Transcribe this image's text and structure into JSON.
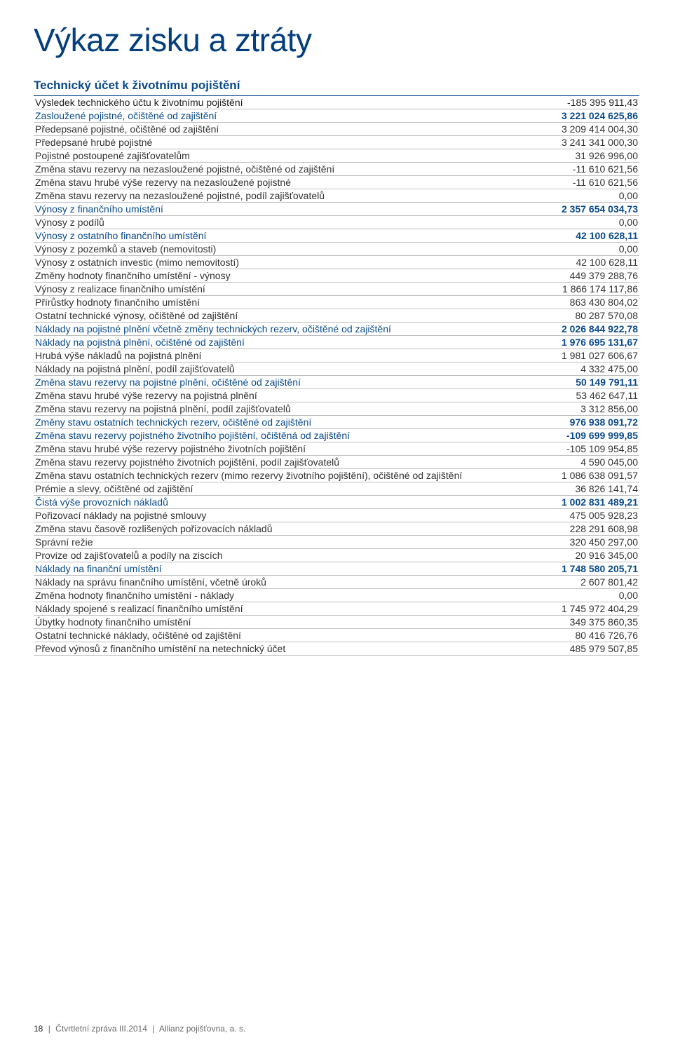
{
  "title": "Výkaz zisku a ztráty",
  "subtitle": "Technický účet k životnímu pojištění",
  "rows": [
    {
      "style": "h",
      "label": "Výsledek technického účtu k životnímu pojištění",
      "value": "-185 395 911,43"
    },
    {
      "style": "blue",
      "label": "Zasloužené pojistné, očištěné od zajištění",
      "value": "3 221 024 625,86"
    },
    {
      "style": "n",
      "label": "Předepsané pojistné, očištěné od zajištění",
      "value": "3 209 414 004,30"
    },
    {
      "style": "n",
      "label": "Předepsané hrubé pojistné",
      "value": "3 241 341 000,30"
    },
    {
      "style": "n",
      "label": "Pojistné postoupené zajišťovatelům",
      "value": "31 926 996,00"
    },
    {
      "style": "n",
      "label": "Změna stavu rezervy na nezasloužené pojistné, očištěné od zajištění",
      "value": "-11 610 621,56"
    },
    {
      "style": "n",
      "label": "Změna stavu hrubé výše rezervy na nezasloužené pojistné",
      "value": "-11 610 621,56"
    },
    {
      "style": "n",
      "label": "Změna stavu rezervy na nezasloužené pojistné, podíl zajišťovatelů",
      "value": "0,00"
    },
    {
      "style": "blue",
      "label": "Výnosy z finančního umístění",
      "value": "2 357 654 034,73"
    },
    {
      "style": "n",
      "label": "Výnosy z podílů",
      "value": "0,00"
    },
    {
      "style": "blue",
      "label": "Výnosy z ostatního finančního umístění",
      "value": "42 100 628,11"
    },
    {
      "style": "n",
      "label": "Výnosy z pozemků a staveb (nemovitosti)",
      "value": "0,00"
    },
    {
      "style": "n",
      "label": "Výnosy z ostatních investic (mimo nemovitostí)",
      "value": "42 100 628,11"
    },
    {
      "style": "n",
      "label": "Změny hodnoty finančního umístění - výnosy",
      "value": "449 379 288,76"
    },
    {
      "style": "n",
      "label": "Výnosy z realizace finančního umístění",
      "value": "1 866 174 117,86"
    },
    {
      "style": "n",
      "label": "Přírůstky hodnoty finančního umístění",
      "value": "863 430 804,02"
    },
    {
      "style": "n",
      "label": "Ostatní technické výnosy, očištěné od zajištění",
      "value": "80 287 570,08"
    },
    {
      "style": "blue",
      "label": "Náklady na pojistné plnění včetně změny technických rezerv, očištěné od zajištění",
      "value": "2 026 844 922,78"
    },
    {
      "style": "blue",
      "label": "Náklady na pojistná plnění, očištěné od zajištění",
      "value": "1 976 695 131,67"
    },
    {
      "style": "n",
      "label": "Hrubá výše nákladů na pojistná plnění",
      "value": "1 981 027 606,67"
    },
    {
      "style": "n",
      "label": "Náklady na pojistná plnění, podíl zajišťovatelů",
      "value": "4 332 475,00"
    },
    {
      "style": "blue",
      "label": "Změna stavu rezervy na pojistné plnění, očištěné od zajištění",
      "value": "50 149 791,11"
    },
    {
      "style": "n",
      "label": "Změna stavu hrubé výše rezervy na pojistná plnění",
      "value": "53 462 647,11"
    },
    {
      "style": "n",
      "label": "Změna stavu rezervy na pojistná plnění, podíl zajišťovatelů",
      "value": "3 312 856,00"
    },
    {
      "style": "blue",
      "label": "Změny stavu ostatních technických rezerv, očištěné od zajištění",
      "value": "976 938 091,72"
    },
    {
      "style": "blue",
      "label": "Změna stavu rezervy pojistného životního pojištění, očištěná od zajištění",
      "value": "-109 699 999,85"
    },
    {
      "style": "n",
      "label": "Změna stavu hrubé výše rezervy pojistného životních pojištění",
      "value": "-105 109 954,85"
    },
    {
      "style": "n",
      "label": "Změna stavu rezervy pojistného životních pojištění, podíl zajišťovatelů",
      "value": "4 590 045,00"
    },
    {
      "style": "n",
      "label": "Změna stavu ostatních technických rezerv (mimo rezervy životního pojištění), očištěné od zajištění",
      "value": "1 086 638 091,57"
    },
    {
      "style": "n",
      "label": "Prémie a slevy, očištěné od zajištění",
      "value": "36 826 141,74"
    },
    {
      "style": "blue",
      "label": "Čistá výše provozních nákladů",
      "value": "1 002 831 489,21"
    },
    {
      "style": "n",
      "label": "Pořizovací náklady na pojistné smlouvy",
      "value": "475 005 928,23"
    },
    {
      "style": "n",
      "label": "Změna stavu časově rozlišených pořizovacích nákladů",
      "value": "228 291 608,98"
    },
    {
      "style": "n",
      "label": "Správní režie",
      "value": "320 450 297,00"
    },
    {
      "style": "n",
      "label": "Provize od zajišťovatelů a podíly na ziscích",
      "value": "20 916 345,00"
    },
    {
      "style": "blue",
      "label": "Náklady na finanční umístění",
      "value": "1 748 580 205,71"
    },
    {
      "style": "n",
      "label": "Náklady na správu finančního umístění, včetně úroků",
      "value": "2 607 801,42"
    },
    {
      "style": "n",
      "label": "Změna hodnoty finančního umístění - náklady",
      "value": "0,00"
    },
    {
      "style": "n",
      "label": "Náklady spojené s realizací finančního umístění",
      "value": "1 745 972 404,29"
    },
    {
      "style": "n",
      "label": "Úbytky hodnoty finančního umístění",
      "value": "349 375 860,35"
    },
    {
      "style": "n",
      "label": "Ostatní technické náklady, očištěné od zajištění",
      "value": "80 416 726,76"
    },
    {
      "style": "n",
      "label": "Převod výnosů z finančního umístění na netechnický účet",
      "value": "485 979 507,85"
    }
  ],
  "footer": {
    "page": "18",
    "doc": "Čtvrtletní zpráva III.2014",
    "company": "Allianz pojišťovna, a. s."
  }
}
